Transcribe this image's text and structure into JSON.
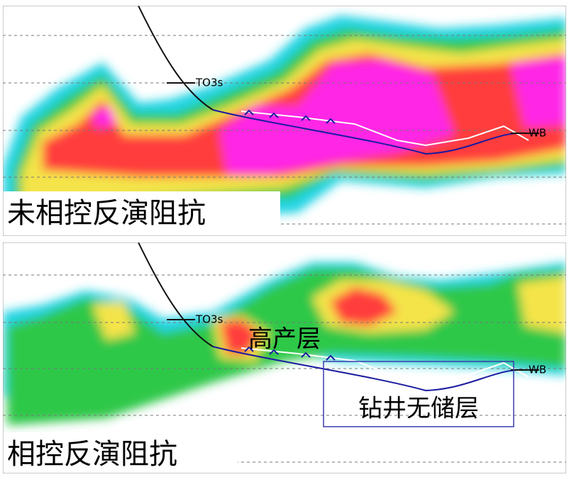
{
  "panels": [
    {
      "label": "未相控反演阻抗",
      "top_label": "TO3s",
      "end_label": "WB"
    },
    {
      "label": "相控反演阻抗",
      "top_label": "TO3s",
      "end_label": "WB",
      "annotations": [
        "高产层",
        "钻井无储层"
      ]
    }
  ]
}
